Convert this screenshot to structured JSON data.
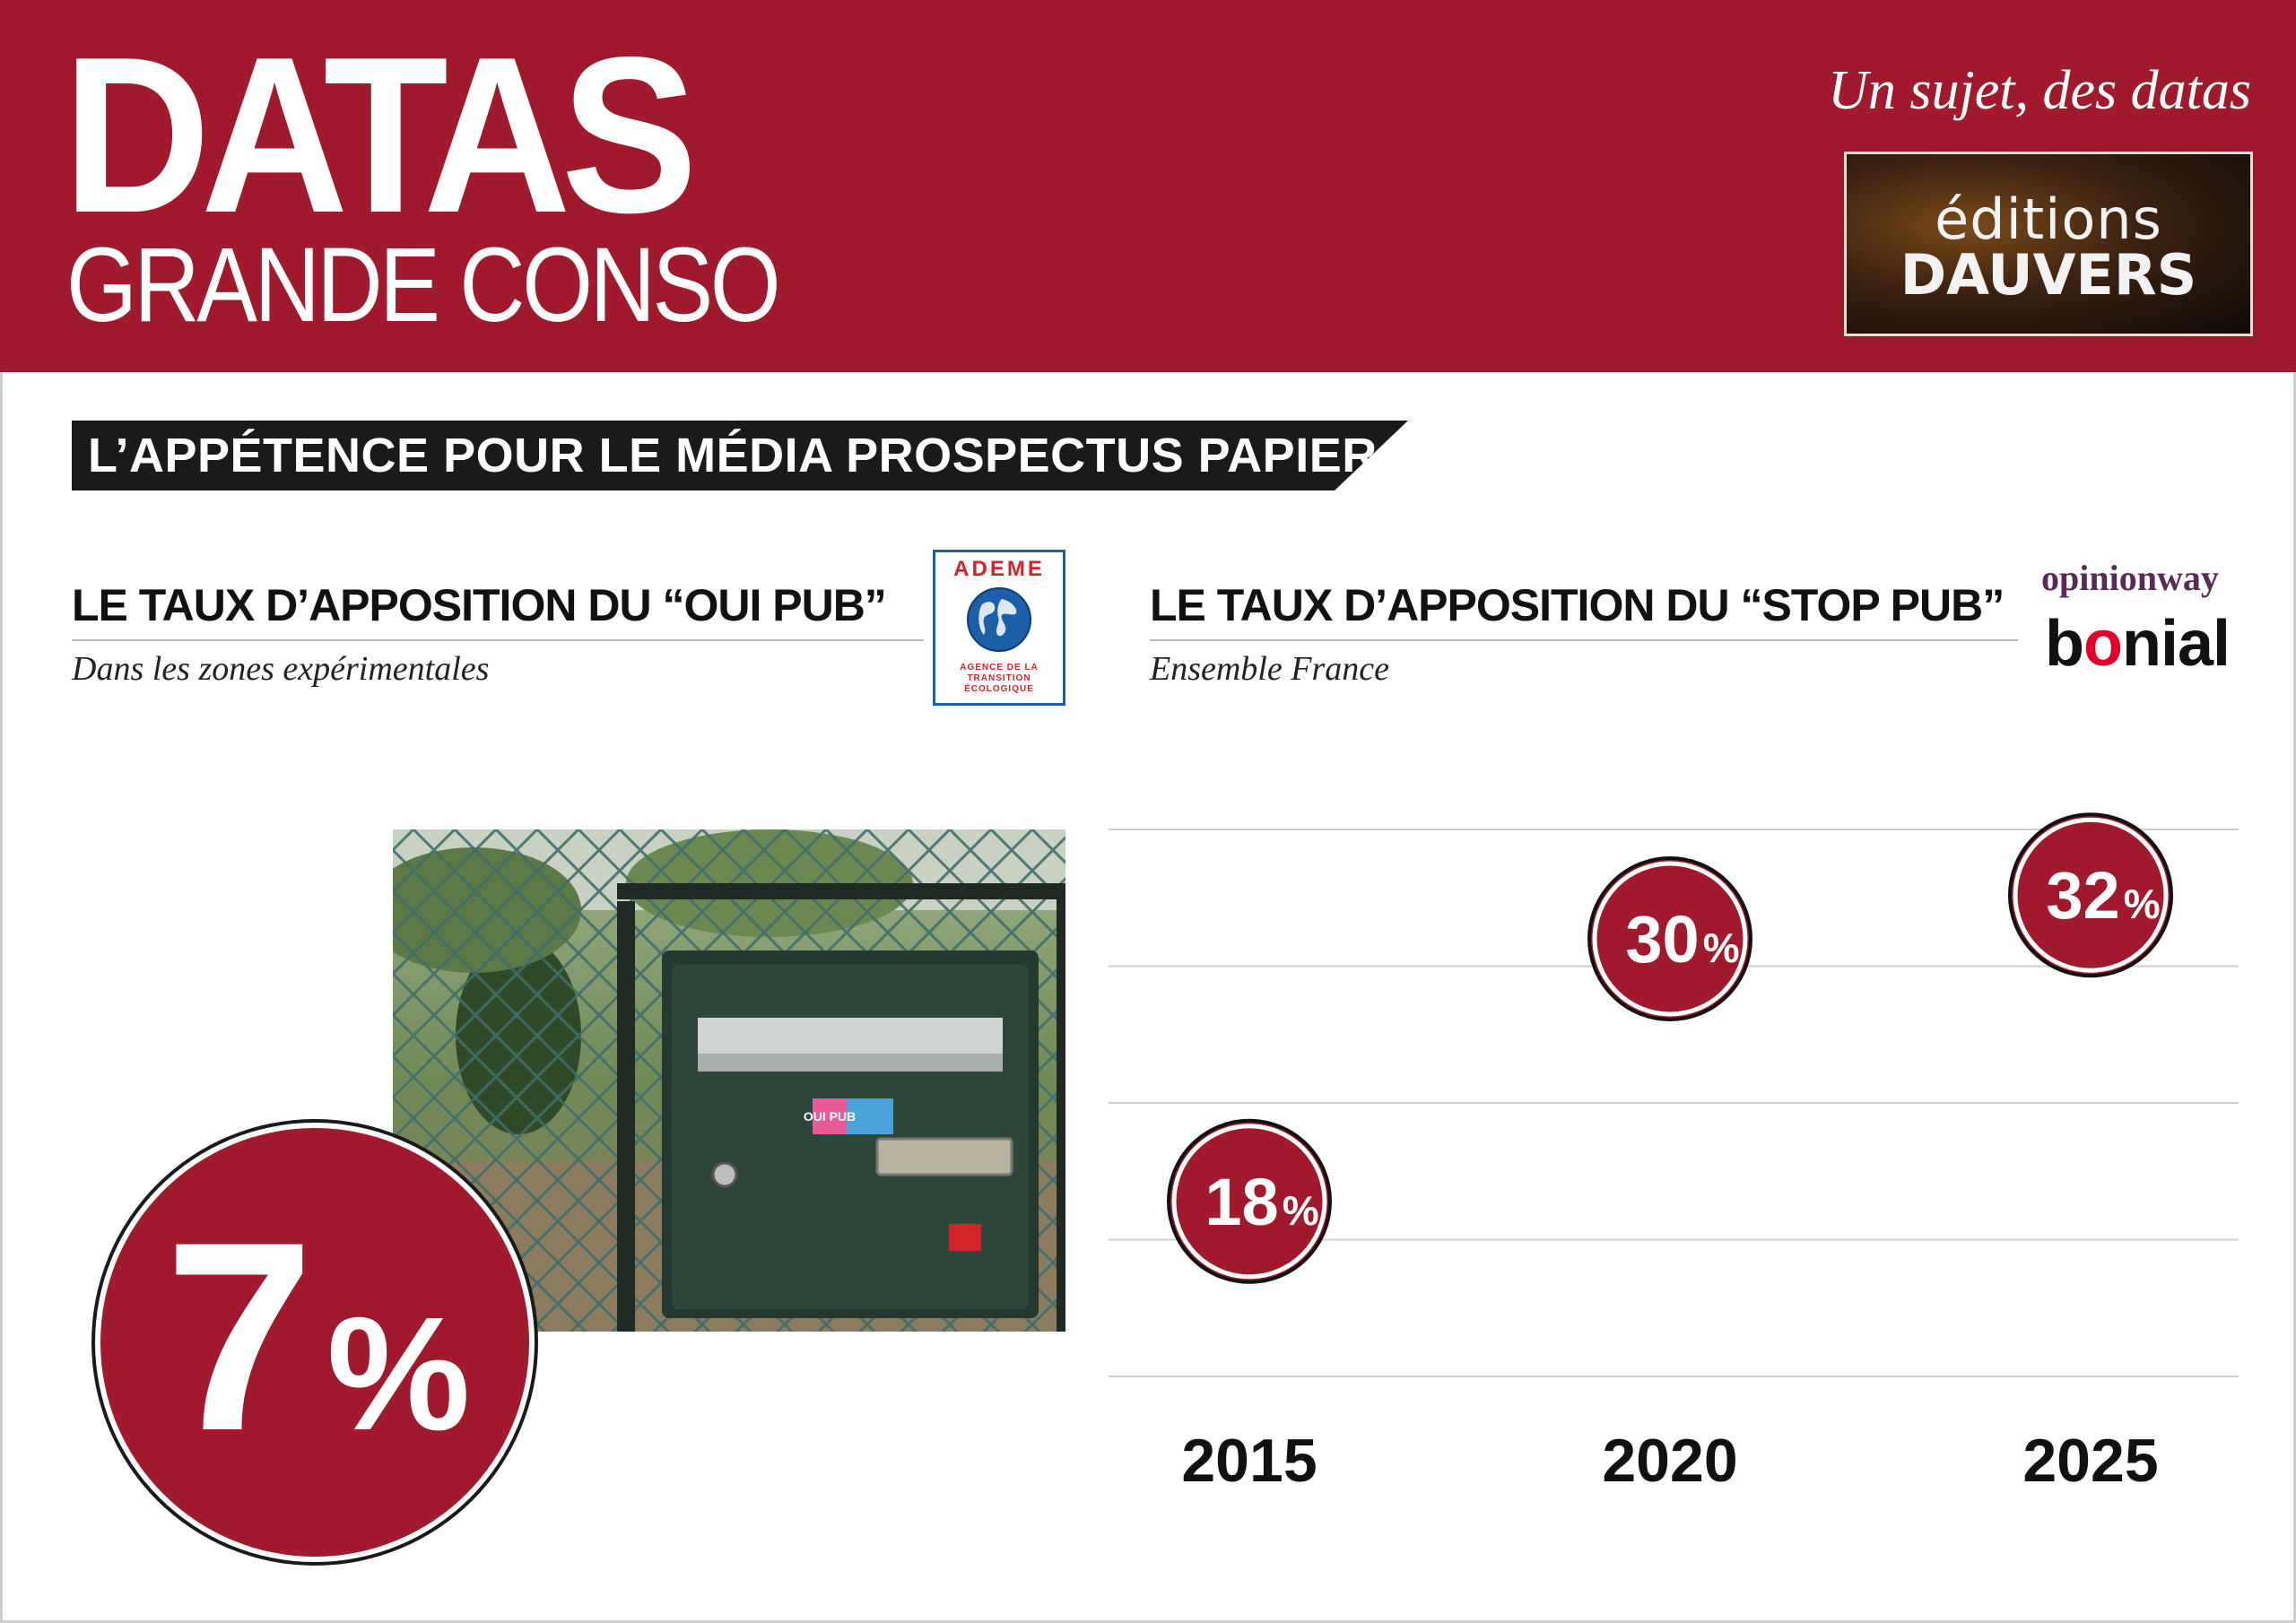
{
  "header": {
    "brand_title": "DATAS",
    "brand_subtitle": "GRANDE CONSO",
    "tagline": "Un sujet, des datas",
    "publisher_line1": "éditions",
    "publisher_line2": "DAUVERS"
  },
  "section": {
    "banner": "L’APPÉTENCE POUR LE MÉDIA PROSPECTUS PAPIER"
  },
  "left_panel": {
    "title": "LE TAUX D’APPOSITION DU “OUI PUB”",
    "caption": "Dans les zones expérimentales",
    "source_logo_name": "ADEME",
    "source_logo_tagline": "AGENCE DE LA TRANSITION ÉCOLOGIQUE",
    "value": "7",
    "value_unit": "%",
    "photo_sticker_text": "OUI PUB"
  },
  "right_panel": {
    "title": "LE TAUX D’APPOSITION DU “STOP PUB”",
    "caption": "Ensemble France",
    "source_logo_1": "opinionway",
    "source_logo_2_pre": "b",
    "source_logo_2_o": "o",
    "source_logo_2_post": "nial"
  },
  "colors": {
    "brand_red": "#a0192c",
    "banner_black": "#1a1a1a"
  },
  "chart_data": {
    "type": "scatter",
    "title": "LE TAUX D’APPOSITION DU “STOP PUB”",
    "subtitle": "Ensemble France",
    "x": [
      "2015",
      "2020",
      "2025"
    ],
    "values": [
      18,
      30,
      32
    ],
    "value_unit": "%",
    "xlabel": "",
    "ylabel": "",
    "ylim": [
      10,
      35
    ],
    "grid": true
  }
}
